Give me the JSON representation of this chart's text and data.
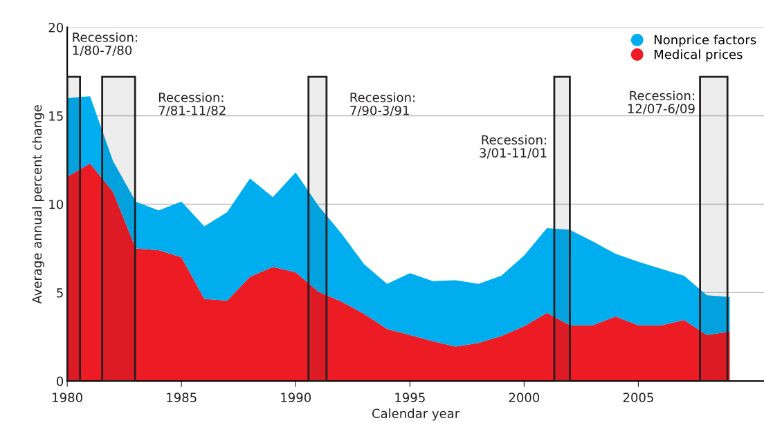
{
  "chart_data": {
    "type": "area",
    "stacked": true,
    "xlabel": "Calendar year",
    "ylabel": "Average annual percent change",
    "x": [
      1980,
      1981,
      1982,
      1983,
      1984,
      1985,
      1986,
      1987,
      1988,
      1989,
      1990,
      1991,
      1992,
      1993,
      1994,
      1995,
      1996,
      1997,
      1998,
      1999,
      2000,
      2001,
      2002,
      2003,
      2004,
      2005,
      2006,
      2007,
      2008,
      2009
    ],
    "series": [
      {
        "name": "Medical prices",
        "color": "#ed1c24",
        "values": [
          11.55,
          12.3,
          10.7,
          7.5,
          7.4,
          7.0,
          4.65,
          4.55,
          5.9,
          6.45,
          6.15,
          5.05,
          4.5,
          3.8,
          2.95,
          2.6,
          2.25,
          1.95,
          2.15,
          2.55,
          3.1,
          3.85,
          3.15,
          3.15,
          3.65,
          3.15,
          3.15,
          3.45,
          2.6,
          2.8
        ]
      },
      {
        "name": "Nonprice factors",
        "color": "#00aeef",
        "values": [
          4.45,
          3.8,
          1.75,
          2.65,
          2.25,
          3.15,
          4.1,
          5.0,
          5.55,
          3.95,
          5.65,
          4.85,
          3.85,
          2.8,
          2.55,
          3.5,
          3.4,
          3.75,
          3.35,
          3.4,
          4.0,
          4.8,
          5.4,
          4.75,
          3.55,
          3.6,
          3.2,
          2.5,
          2.25,
          1.95
        ]
      }
    ],
    "xlim": [
      1980,
      2010.5
    ],
    "xticks": [
      1980,
      1985,
      1990,
      1995,
      2000,
      2005
    ],
    "ylim": [
      0,
      20
    ],
    "yticks": [
      0,
      5,
      10,
      15,
      20
    ],
    "grid": "y",
    "legend": "top right",
    "bands": [
      {
        "axis": "x",
        "from": 1980,
        "to": 1980.56,
        "label": "Recession:\n1/80-7/80",
        "color": "#231f20"
      },
      {
        "axis": "x",
        "from": 1981.53,
        "to": 1982.97,
        "label": "Recession:\n7/81-11/82",
        "color": "#231f20"
      },
      {
        "axis": "x",
        "from": 1990.56,
        "to": 1991.35,
        "label": "Recession:\n7/90-3/91",
        "color": "#231f20"
      },
      {
        "axis": "x",
        "from": 2001.32,
        "to": 2002.0,
        "label": "Recession:\n3/01-11/01",
        "color": "#231f20"
      },
      {
        "axis": "x",
        "from": 2007.7,
        "to": 2008.9,
        "label": "Recession:\n12/07-6/09",
        "color": "#231f20"
      }
    ]
  }
}
